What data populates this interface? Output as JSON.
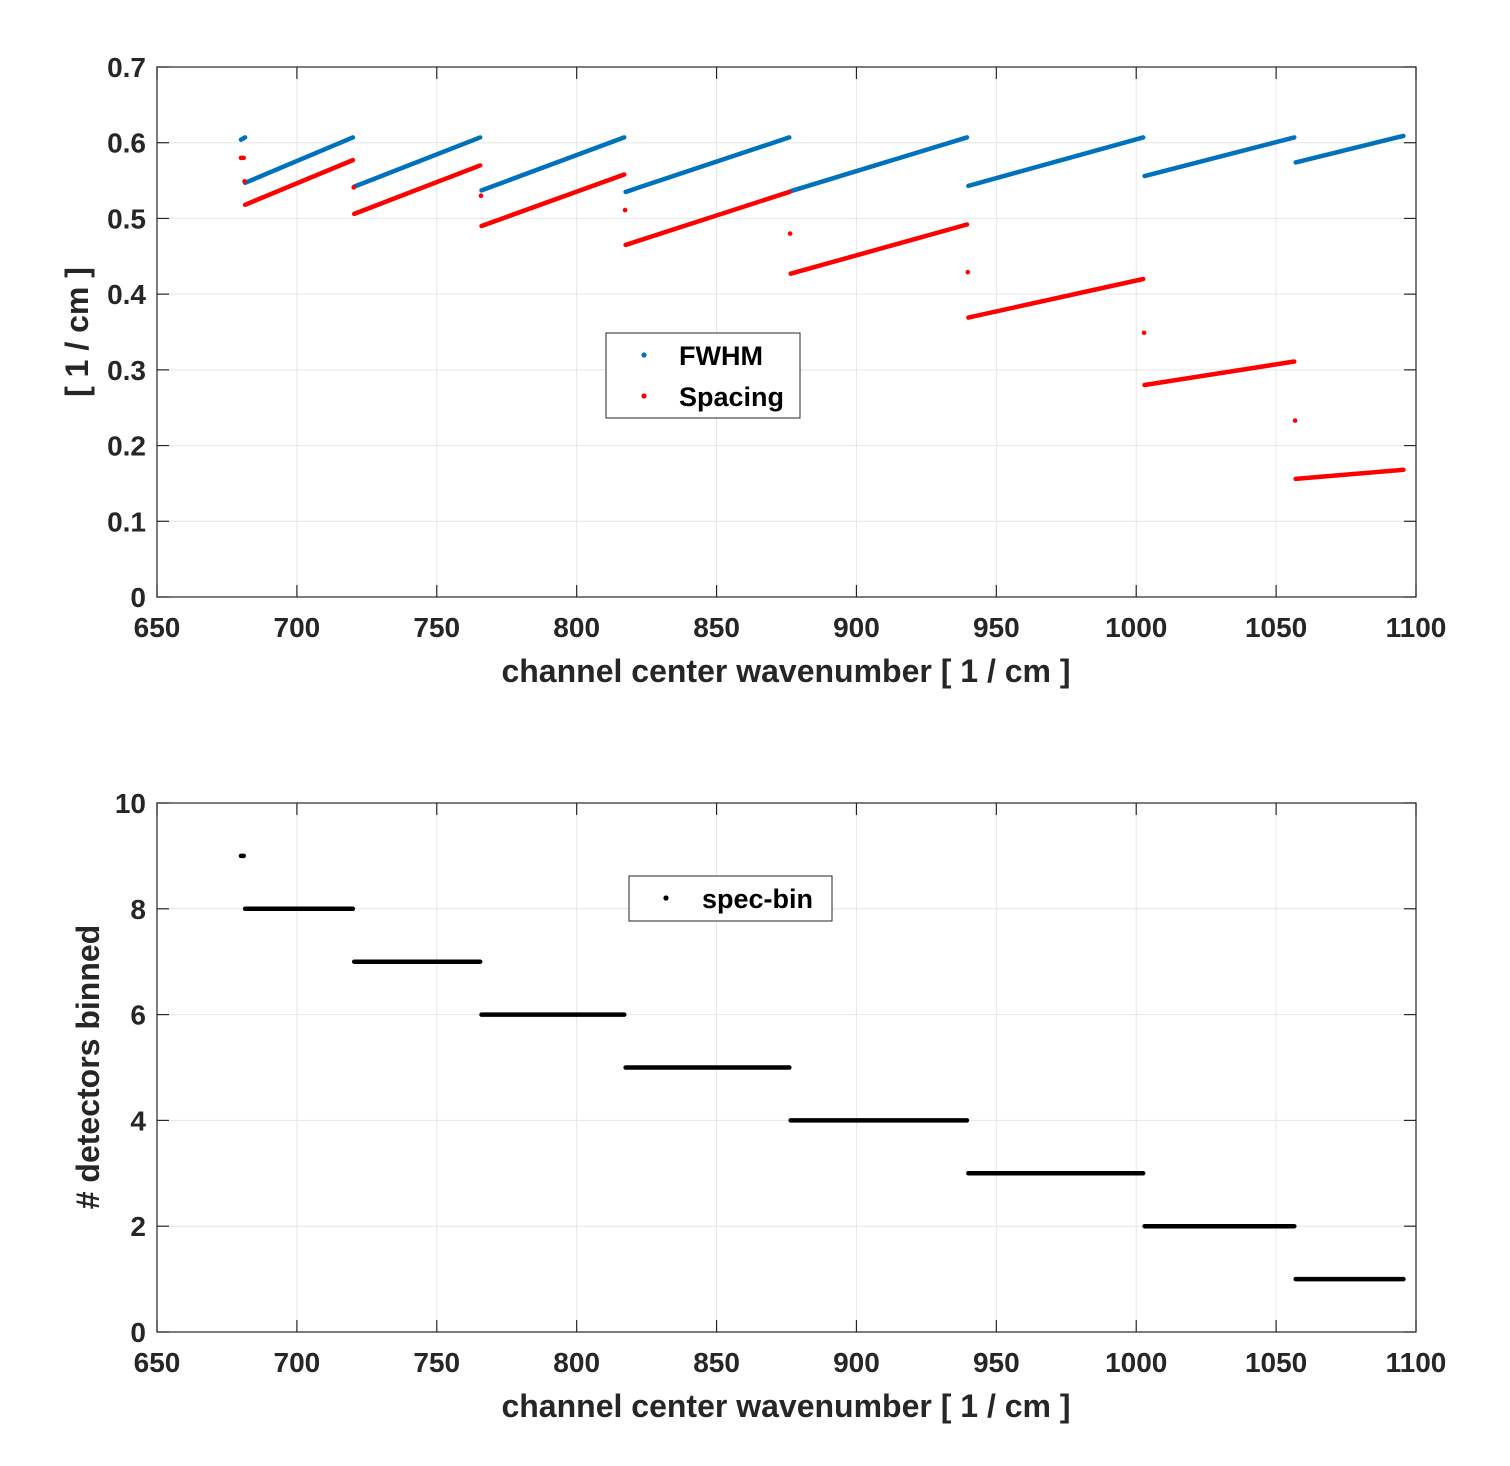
{
  "chart_data": [
    {
      "type": "scatter",
      "title": "",
      "xlabel": "channel center wavenumber [ 1 / cm ]",
      "ylabel": "[ 1 / cm ]",
      "xlim": [
        650,
        1100
      ],
      "ylim": [
        0,
        0.7
      ],
      "xticks": [
        "650",
        "700",
        "750",
        "800",
        "850",
        "900",
        "950",
        "1000",
        "1050",
        "1100"
      ],
      "yticks": [
        "0",
        "0.1",
        "0.2",
        "0.3",
        "0.4",
        "0.5",
        "0.6",
        "0.7"
      ],
      "grid": true,
      "legend": {
        "placement": "center",
        "entries": [
          "FWHM",
          "Spacing"
        ]
      },
      "series": [
        {
          "name": "FWHM",
          "color": "#0072BD",
          "segments": [
            {
              "x": [
                680,
                681.5
              ],
              "y": [
                0.604,
                0.607
              ]
            },
            {
              "x": [
                681.5,
                720
              ],
              "y": [
                0.547,
                0.607
              ]
            },
            {
              "x": [
                720.5,
                765.5
              ],
              "y": [
                0.542,
                0.607
              ]
            },
            {
              "x": [
                766,
                817
              ],
              "y": [
                0.537,
                0.607
              ]
            },
            {
              "x": [
                817.5,
                876
              ],
              "y": [
                0.535,
                0.607
              ]
            },
            {
              "x": [
                876.5,
                939.5
              ],
              "y": [
                0.536,
                0.607
              ]
            },
            {
              "x": [
                940,
                1002.5
              ],
              "y": [
                0.543,
                0.607
              ]
            },
            {
              "x": [
                1003,
                1056.5
              ],
              "y": [
                0.556,
                0.607
              ]
            },
            {
              "x": [
                1057,
                1095.5
              ],
              "y": [
                0.574,
                0.609
              ]
            }
          ]
        },
        {
          "name": "Spacing",
          "color": "#FF0000",
          "segments": [
            {
              "x": [
                680,
                681
              ],
              "y": [
                0.58,
                0.58
              ]
            },
            {
              "x": [
                681.5,
                720
              ],
              "y": [
                0.518,
                0.577
              ]
            },
            {
              "x": [
                720.5,
                765.5
              ],
              "y": [
                0.506,
                0.57
              ]
            },
            {
              "x": [
                766,
                817
              ],
              "y": [
                0.49,
                0.558
              ]
            },
            {
              "x": [
                817.5,
                876
              ],
              "y": [
                0.465,
                0.535
              ]
            },
            {
              "x": [
                876.5,
                939.5
              ],
              "y": [
                0.427,
                0.492
              ]
            },
            {
              "x": [
                940,
                1002.5
              ],
              "y": [
                0.369,
                0.42
              ]
            },
            {
              "x": [
                1003,
                1056.5
              ],
              "y": [
                0.28,
                0.311
              ]
            },
            {
              "x": [
                1057,
                1095.5
              ],
              "y": [
                0.156,
                0.168
              ]
            }
          ],
          "points": [
            {
              "x": 681.3,
              "y": 0.549
            },
            {
              "x": 720.3,
              "y": 0.541
            },
            {
              "x": 765.8,
              "y": 0.53
            },
            {
              "x": 817.3,
              "y": 0.511
            },
            {
              "x": 876.3,
              "y": 0.48
            },
            {
              "x": 939.8,
              "y": 0.429
            },
            {
              "x": 1002.8,
              "y": 0.349
            },
            {
              "x": 1056.8,
              "y": 0.233
            }
          ]
        }
      ]
    },
    {
      "type": "scatter",
      "title": "",
      "xlabel": "channel center wavenumber [ 1 / cm ]",
      "ylabel": "# detectors binned",
      "xlim": [
        650,
        1100
      ],
      "ylim": [
        0,
        10
      ],
      "xticks": [
        "650",
        "700",
        "750",
        "800",
        "850",
        "900",
        "950",
        "1000",
        "1050",
        "1100"
      ],
      "yticks": [
        "0",
        "2",
        "4",
        "6",
        "8",
        "10"
      ],
      "grid": true,
      "legend": {
        "placement": "top-center",
        "entries": [
          "spec-bin"
        ]
      },
      "series": [
        {
          "name": "spec-bin",
          "color": "#000000",
          "segments": [
            {
              "x": [
                680,
                681
              ],
              "y": [
                9,
                9
              ]
            },
            {
              "x": [
                681.5,
                720
              ],
              "y": [
                8,
                8
              ]
            },
            {
              "x": [
                720.5,
                765.5
              ],
              "y": [
                7,
                7
              ]
            },
            {
              "x": [
                766,
                817
              ],
              "y": [
                6,
                6
              ]
            },
            {
              "x": [
                817.5,
                876
              ],
              "y": [
                5,
                5
              ]
            },
            {
              "x": [
                876.5,
                939.5
              ],
              "y": [
                4,
                4
              ]
            },
            {
              "x": [
                940,
                1002.5
              ],
              "y": [
                3,
                3
              ]
            },
            {
              "x": [
                1003,
                1056.5
              ],
              "y": [
                2,
                2
              ]
            },
            {
              "x": [
                1057,
                1095.5
              ],
              "y": [
                1,
                1
              ]
            }
          ]
        }
      ]
    }
  ]
}
